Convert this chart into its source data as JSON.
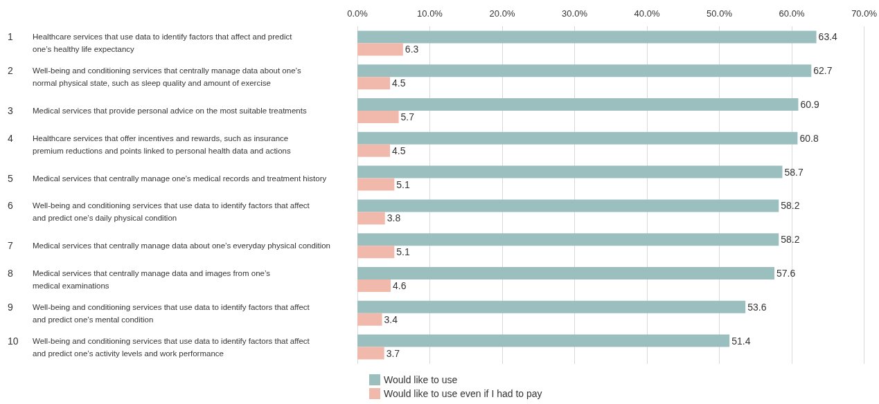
{
  "chart_data": {
    "type": "bar",
    "orientation": "horizontal",
    "categories": [
      "1 Healthcare services that use data to identify factors that affect and predict\none’s healthy life expectancy",
      "2 Well-being and conditioning services that centrally manage data about one’s\nnormal physical state, such as sleep quality and amount of exercise",
      "3 Medical services that provide personal advice on the most suitable treatments",
      "4 Healthcare services that offer incentives and rewards, such as insurance\npremium reductions and points linked to personal health data and actions",
      "5 Medical services that centrally manage one’s medical records and treatment history",
      "6 Well-being and conditioning services that use data to identify factors that affect\nand predict one’s daily physical condition",
      "7 Medical services that centrally manage data about one’s everyday physical condition",
      "8 Medical services that centrally manage data and images from one’s\nmedical examinations",
      "9 Well-being and conditioning services that use data to identify factors that affect\nand predict one’s mental condition",
      "10 Well-being and conditioning services that use data to identify factors that affect\nand predict one’s activity levels and work performance"
    ],
    "series": [
      {
        "name": "Would like to use",
        "color": "#9bbfbe",
        "values": [
          63.4,
          62.7,
          60.9,
          60.8,
          58.7,
          58.2,
          58.2,
          57.6,
          53.6,
          51.4
        ]
      },
      {
        "name": "Would like to use even if I had to pay",
        "color": "#f0b9ab",
        "values": [
          6.3,
          4.5,
          5.7,
          4.5,
          5.1,
          3.8,
          5.1,
          4.6,
          3.4,
          3.7
        ]
      }
    ],
    "xlim": [
      0,
      70
    ],
    "xticks": [
      {
        "value": 0,
        "label": "0.0%"
      },
      {
        "value": 10,
        "label": "10.0%"
      },
      {
        "value": 20,
        "label": "20.0%"
      },
      {
        "value": 30,
        "label": "30.0%"
      },
      {
        "value": 40,
        "label": "40.0%"
      },
      {
        "value": 50,
        "label": "50.0%"
      },
      {
        "value": 60,
        "label": "60.0%"
      },
      {
        "value": 70,
        "label": "70.0%"
      }
    ],
    "data_labels": true,
    "grid": "x",
    "legend": "bottom"
  }
}
